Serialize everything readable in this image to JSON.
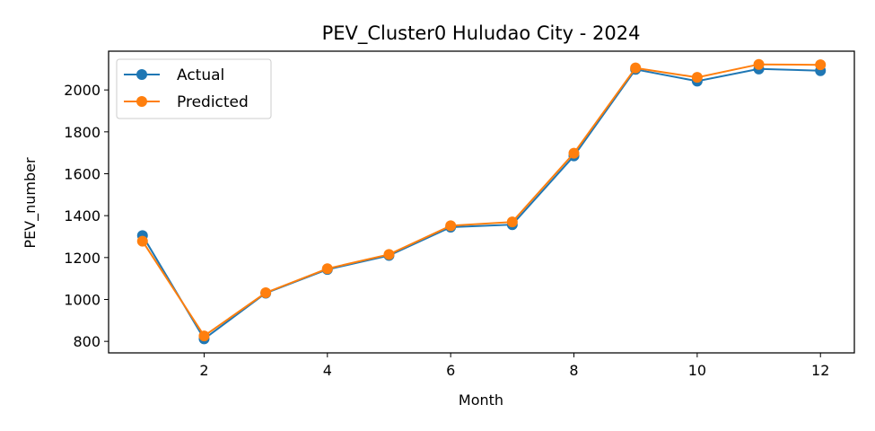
{
  "chart_data": {
    "type": "line",
    "title": "PEV_Cluster0 Huludao City - 2024",
    "xlabel": "Month",
    "ylabel": "PEV_number",
    "x": [
      1,
      2,
      3,
      4,
      5,
      6,
      7,
      8,
      9,
      10,
      11,
      12
    ],
    "xlim": [
      0.45,
      12.55
    ],
    "ylim": [
      745,
      2185
    ],
    "xticks": [
      2,
      4,
      6,
      8,
      10,
      12
    ],
    "yticks": [
      800,
      1000,
      1200,
      1400,
      1600,
      1800,
      2000
    ],
    "grid": false,
    "legend_position": "top-left",
    "series": [
      {
        "name": "Actual",
        "color": "#1f77b4",
        "values": [
          1305,
          812,
          1030,
          1143,
          1210,
          1345,
          1357,
          1685,
          2098,
          2042,
          2100,
          2092
        ]
      },
      {
        "name": "Predicted",
        "color": "#ff7f0e",
        "values": [
          1278,
          826,
          1032,
          1147,
          1215,
          1352,
          1370,
          1698,
          2105,
          2060,
          2122,
          2120
        ]
      }
    ]
  }
}
